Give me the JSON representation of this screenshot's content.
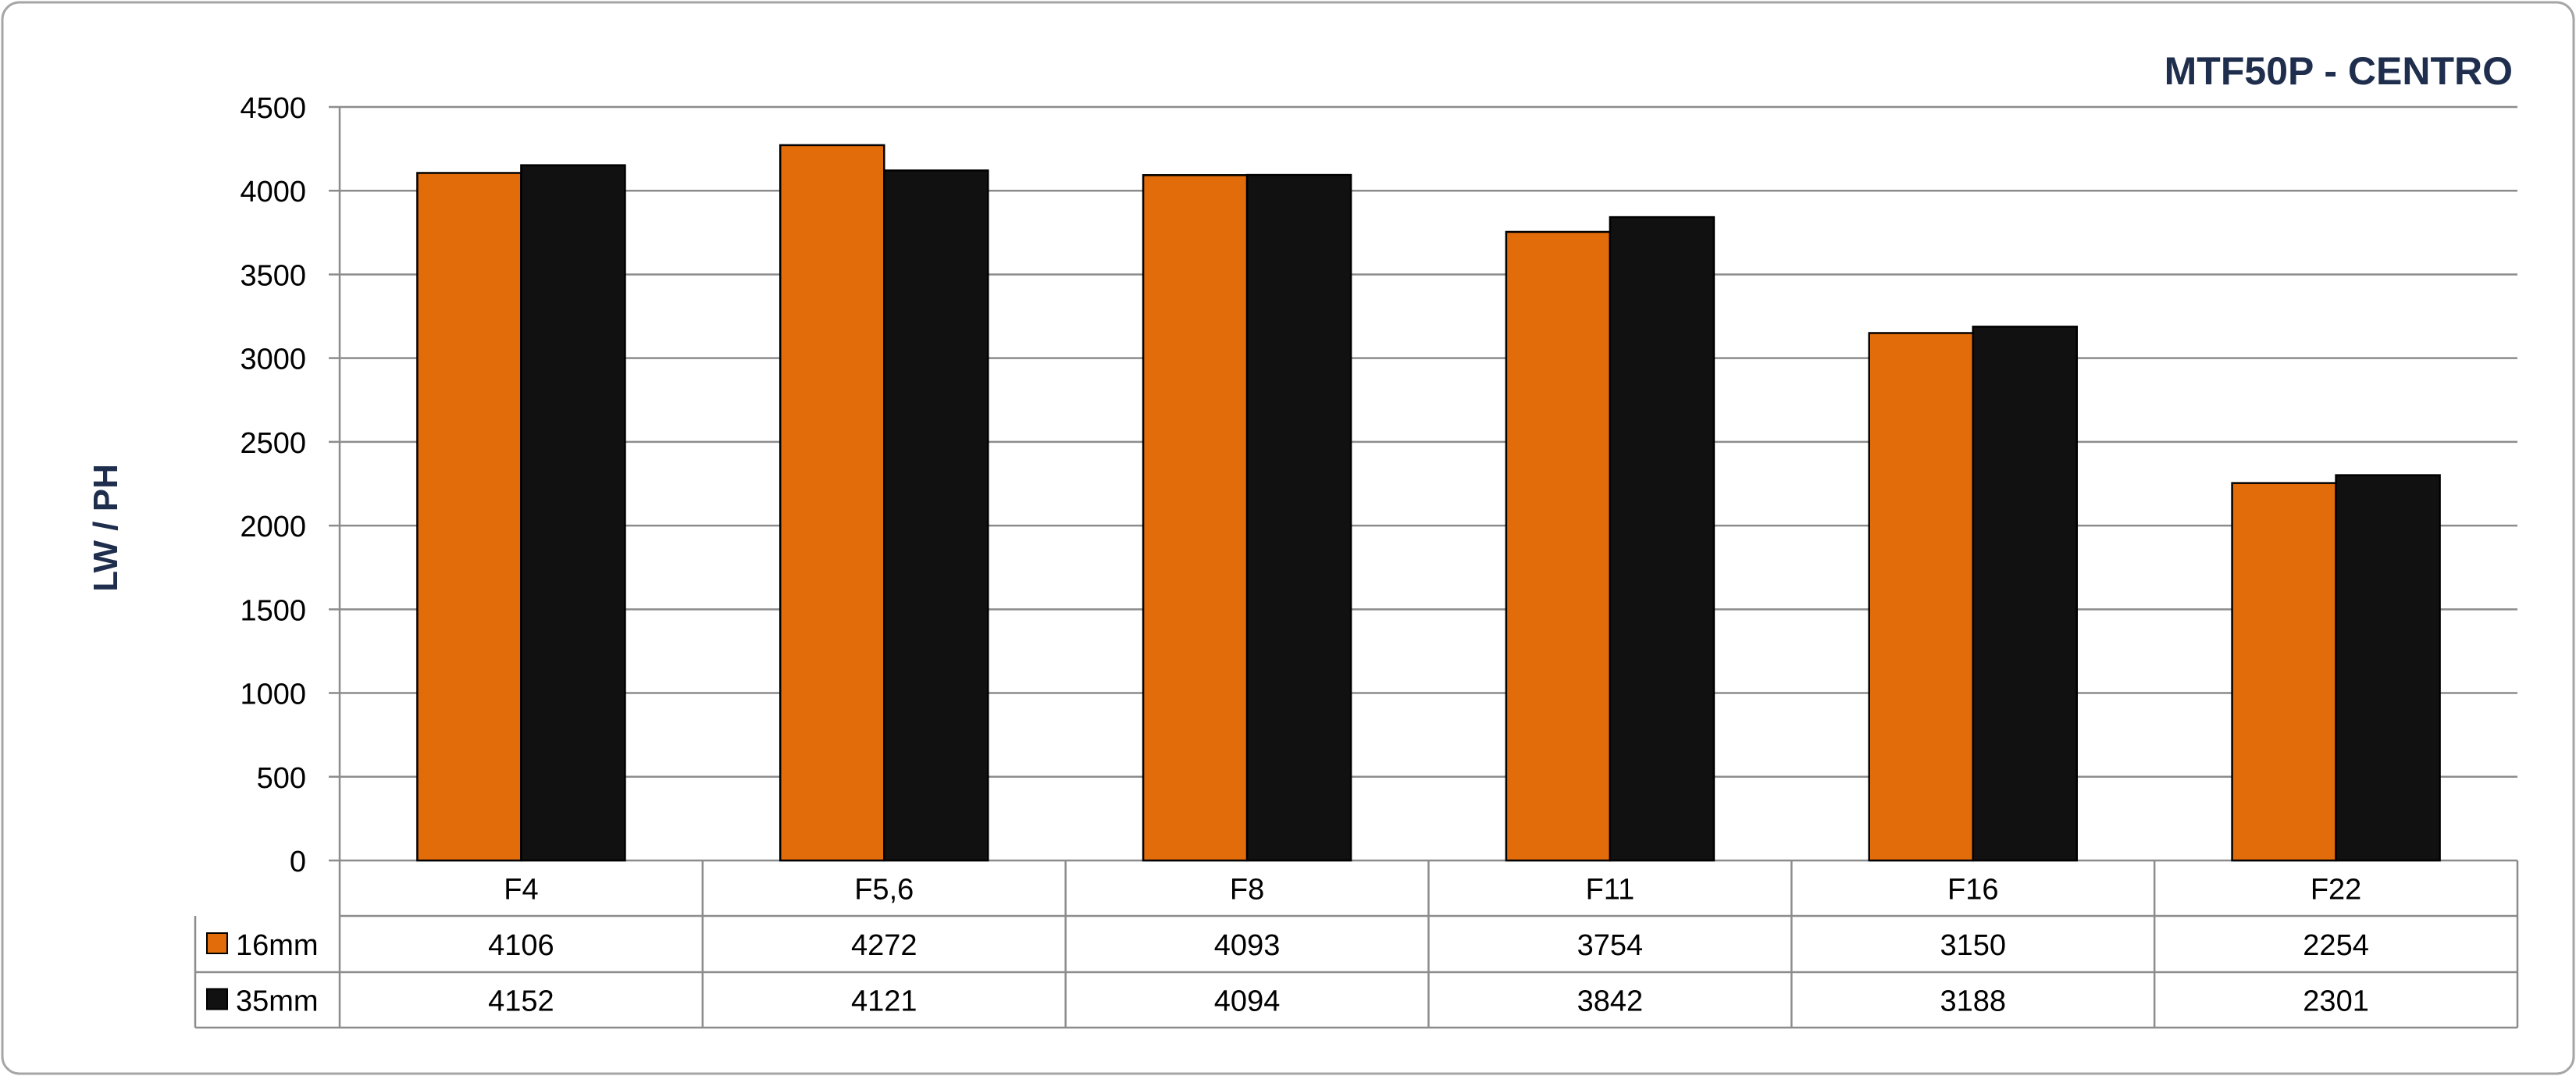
{
  "chart_data": {
    "type": "bar",
    "title": "MTF50P - CENTRO",
    "xlabel": "",
    "ylabel": "LW / PH",
    "ylim": [
      0,
      4500
    ],
    "yticks": [
      0,
      500,
      1000,
      1500,
      2000,
      2500,
      3000,
      3500,
      4000,
      4500
    ],
    "grid": true,
    "legend": "data-table",
    "categories": [
      "F4",
      "F5,6",
      "F8",
      "F11",
      "F16",
      "F22"
    ],
    "series": [
      {
        "name": "16mm",
        "color": "#E36C0A",
        "values": [
          4106,
          4272,
          4093,
          3754,
          3150,
          2254
        ]
      },
      {
        "name": "35mm",
        "color": "#111111",
        "values": [
          4152,
          4121,
          4094,
          3842,
          3188,
          2301
        ]
      }
    ]
  }
}
